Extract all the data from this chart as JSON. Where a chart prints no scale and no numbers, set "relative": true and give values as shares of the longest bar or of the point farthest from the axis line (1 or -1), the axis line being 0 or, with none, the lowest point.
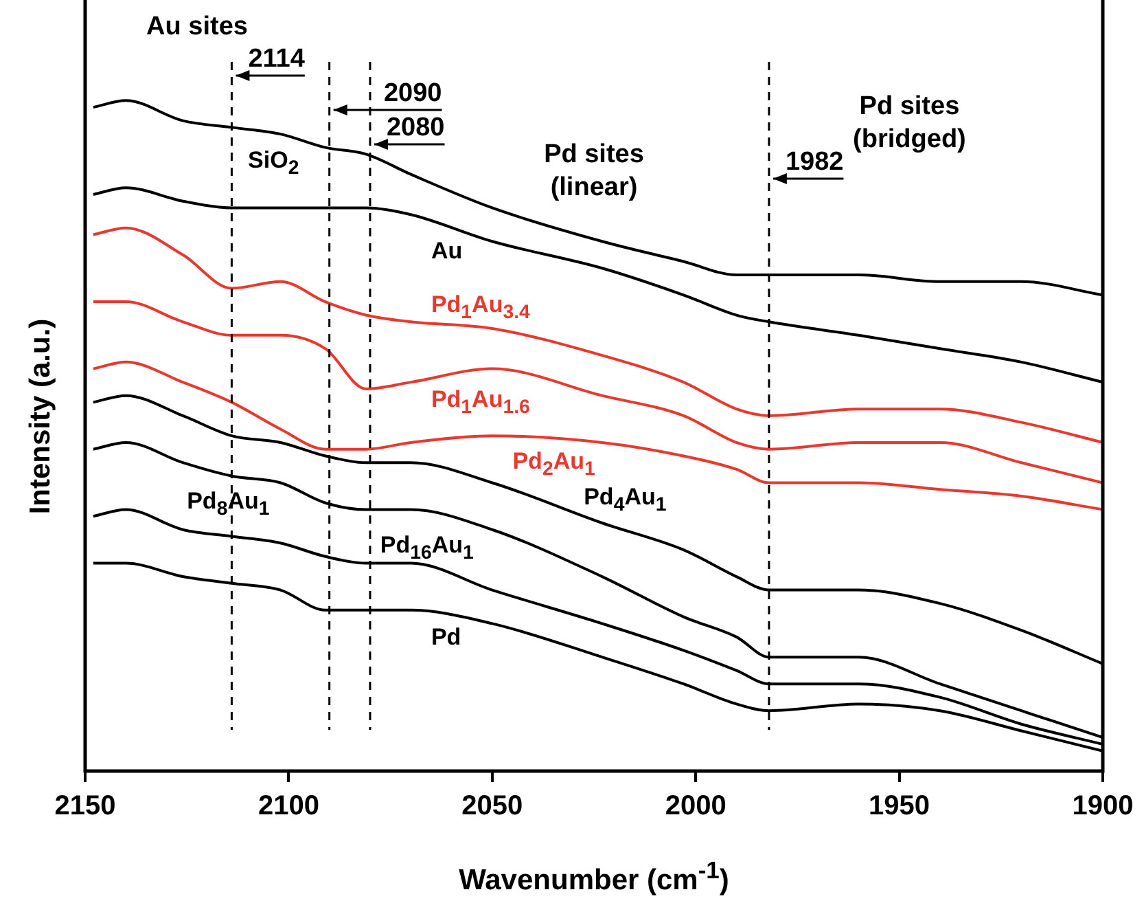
{
  "chart_data": {
    "type": "line",
    "relative": true,
    "xlabel": "Wavenumber (cm$^{-1}$)",
    "ylabel": "Intensity (a.u.)",
    "xlim": [
      2150,
      1900
    ],
    "xticks": [
      2150,
      2100,
      2050,
      2000,
      1950,
      1900
    ],
    "legend": false,
    "grid": false,
    "x": [
      2148,
      2140,
      2126,
      2114,
      2102,
      2091,
      2081,
      2070,
      2050,
      2023,
      2003,
      1990,
      1982,
      1960,
      1940,
      1920,
      1900
    ],
    "series": [
      {
        "name": "SiO$_{2}$",
        "color": "#000000",
        "values": [
          0.99,
          1.0,
          0.97,
          0.96,
          0.95,
          0.93,
          0.92,
          0.89,
          0.84,
          0.79,
          0.76,
          0.74,
          0.74,
          0.74,
          0.73,
          0.73,
          0.71
        ]
      },
      {
        "name": "Au",
        "color": "#000000",
        "values": [
          0.86,
          0.87,
          0.85,
          0.84,
          0.84,
          0.84,
          0.84,
          0.83,
          0.79,
          0.75,
          0.71,
          0.68,
          0.67,
          0.65,
          0.63,
          0.61,
          0.58
        ]
      },
      {
        "name": "Pd$_{1}$Au$_{3.4}$",
        "color": "#e8392e",
        "values": [
          0.8,
          0.81,
          0.77,
          0.72,
          0.73,
          0.7,
          0.68,
          0.67,
          0.66,
          0.62,
          0.58,
          0.54,
          0.53,
          0.54,
          0.54,
          0.52,
          0.49
        ]
      },
      {
        "name": "Pd$_{1}$Au$_{1.6}$",
        "color": "#e8392e",
        "values": [
          0.7,
          0.7,
          0.67,
          0.65,
          0.65,
          0.63,
          0.57,
          0.58,
          0.6,
          0.56,
          0.53,
          0.49,
          0.48,
          0.49,
          0.49,
          0.46,
          0.43
        ]
      },
      {
        "name": "Pd$_{2}$Au$_{1}$",
        "color": "#e8392e",
        "values": [
          0.6,
          0.61,
          0.58,
          0.55,
          0.51,
          0.48,
          0.48,
          0.49,
          0.5,
          0.49,
          0.47,
          0.45,
          0.43,
          0.43,
          0.42,
          0.41,
          0.39
        ]
      },
      {
        "name": "Pd$_{4}$Au$_{1}$",
        "color": "#000000",
        "values": [
          0.55,
          0.56,
          0.53,
          0.5,
          0.49,
          0.47,
          0.46,
          0.46,
          0.43,
          0.37,
          0.33,
          0.29,
          0.27,
          0.27,
          0.25,
          0.21,
          0.16
        ]
      },
      {
        "name": "Pd$_{8}$Au$_{1}$",
        "color": "#000000",
        "values": [
          0.48,
          0.49,
          0.46,
          0.44,
          0.43,
          0.4,
          0.39,
          0.39,
          0.36,
          0.29,
          0.23,
          0.2,
          0.17,
          0.17,
          0.13,
          0.09,
          0.05
        ]
      },
      {
        "name": "Pd$_{16}$Au$_{1}$",
        "color": "#000000",
        "values": [
          0.38,
          0.39,
          0.36,
          0.35,
          0.34,
          0.32,
          0.31,
          0.31,
          0.27,
          0.22,
          0.18,
          0.15,
          0.13,
          0.13,
          0.11,
          0.07,
          0.04
        ]
      },
      {
        "name": "Pd",
        "color": "#000000",
        "values": [
          0.31,
          0.31,
          0.29,
          0.28,
          0.27,
          0.24,
          0.24,
          0.24,
          0.22,
          0.17,
          0.13,
          0.1,
          0.09,
          0.1,
          0.09,
          0.06,
          0.03
        ]
      }
    ],
    "ref_lines": [
      {
        "axis": "x",
        "value": 2114,
        "label": "2114",
        "line_style": "dashed"
      },
      {
        "axis": "x",
        "value": 2090,
        "label": "2090",
        "line_style": "dashed"
      },
      {
        "axis": "x",
        "value": 2080,
        "label": "2080",
        "line_style": "dashed"
      },
      {
        "axis": "x",
        "value": 1982,
        "label": "1982",
        "line_style": "dashed"
      }
    ],
    "annotations": [
      "Au sites",
      "Pd sites (linear)",
      "Pd sites (bridged)"
    ]
  }
}
